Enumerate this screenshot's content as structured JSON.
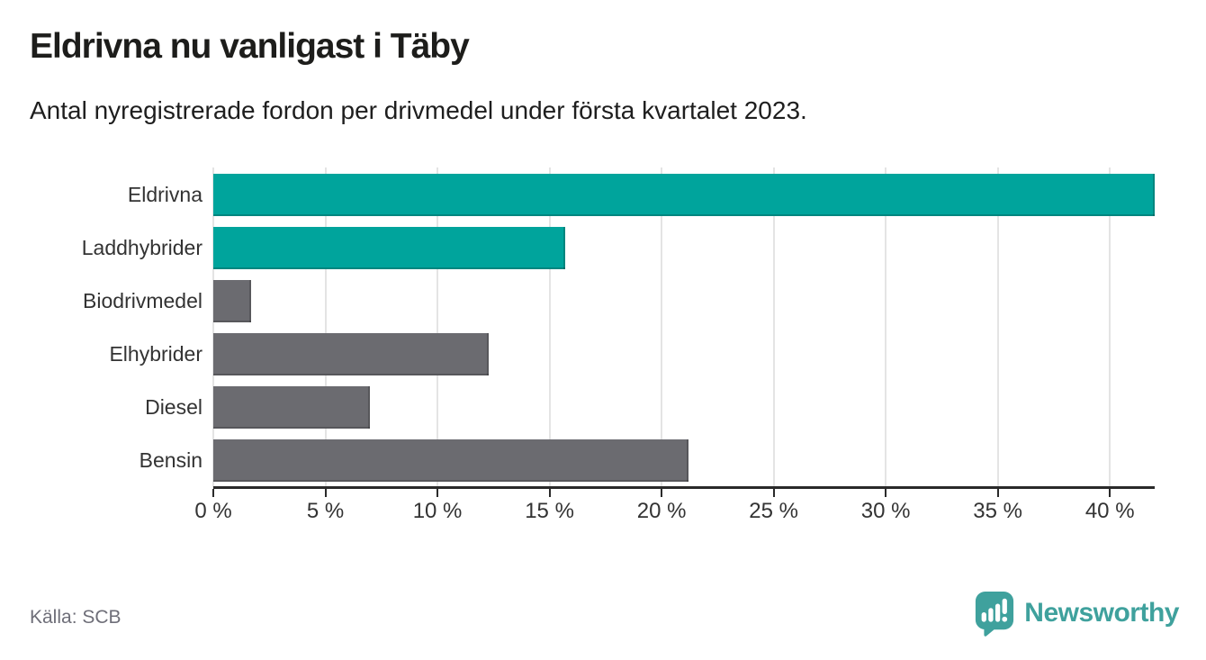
{
  "header": {
    "title": "Eldrivna nu vanligast i Täby",
    "subtitle": "Antal nyregistrerade fordon per drivmedel under första kvartalet 2023."
  },
  "chart_data": {
    "type": "bar",
    "orientation": "horizontal",
    "title": "Eldrivna nu vanligast i Täby",
    "subtitle": "Antal nyregistrerade fordon per drivmedel under första kvartalet 2023.",
    "categories": [
      "Eldrivna",
      "Laddhybrider",
      "Biodrivmedel",
      "Elhybrider",
      "Diesel",
      "Bensin"
    ],
    "values": [
      42.0,
      15.7,
      1.7,
      12.3,
      7.0,
      21.2
    ],
    "unit": "%",
    "bar_colors": [
      "#00a49c",
      "#00a49c",
      "#6b6b70",
      "#6b6b70",
      "#6b6b70",
      "#6b6b70"
    ],
    "highlight_color": "#00a49c",
    "default_color": "#6b6b70",
    "xlabel": "",
    "ylabel": "",
    "xlim": [
      0,
      42
    ],
    "x_ticks": [
      0,
      5,
      10,
      15,
      20,
      25,
      30,
      35,
      40
    ],
    "x_tick_labels": [
      "0 %",
      "5 %",
      "10 %",
      "15 %",
      "20 %",
      "25 %",
      "30 %",
      "35 %",
      "40 %"
    ],
    "grid": "vertical-gridlines-on",
    "gridline_color": "#e4e4e4",
    "legend": "none"
  },
  "footer": {
    "source": "Källa: SCB",
    "brand": "Newsworthy",
    "brand_color": "#3fa19d",
    "icon": "newsworthy-speech-bubble-barchart-icon"
  }
}
